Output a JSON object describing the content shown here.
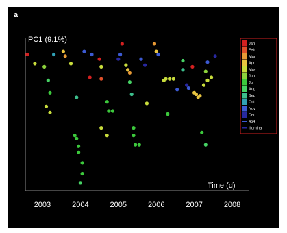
{
  "panel_label": "a",
  "chart_data": {
    "type": "scatter",
    "ylabel": "PC1 (9.1%)",
    "xlabel": "Time (d)",
    "x_ticks": [
      "2003",
      "2004",
      "2005",
      "2006",
      "2007",
      "2008"
    ],
    "xlim": [
      2002.55,
      2008.45
    ],
    "ylim": [
      0,
      1
    ],
    "grid": false,
    "legend_position": "top-right",
    "legend": [
      {
        "label": "Jan",
        "color": "#d42020"
      },
      {
        "label": "Feb",
        "color": "#e0502a"
      },
      {
        "label": "Mar",
        "color": "#e89a35"
      },
      {
        "label": "Apr",
        "color": "#e8c440"
      },
      {
        "label": "May",
        "color": "#c8dc3c"
      },
      {
        "label": "Jun",
        "color": "#8cd23c"
      },
      {
        "label": "Jul",
        "color": "#3cc83c"
      },
      {
        "label": "Aug",
        "color": "#46d264"
      },
      {
        "label": "Sep",
        "color": "#3cbe8c"
      },
      {
        "label": "Oct",
        "color": "#30a0b4"
      },
      {
        "label": "Nov",
        "color": "#3c5ad2"
      },
      {
        "label": "Dec",
        "color": "#2828a0"
      },
      {
        "label": "454",
        "color": "#3c5ad2",
        "marker": "line"
      },
      {
        "label": "Illumina",
        "color": "#2828a0",
        "marker": "line"
      }
    ],
    "series": [
      {
        "name": "454",
        "points": [
          {
            "x": 2002.6,
            "y": 0.89,
            "c": "#d42020"
          },
          {
            "x": 2002.8,
            "y": 0.83,
            "c": "#c8dc3c"
          },
          {
            "x": 2003.05,
            "y": 0.81,
            "c": "#8cd23c"
          },
          {
            "x": 2003.15,
            "y": 0.72,
            "c": "#46d264"
          },
          {
            "x": 2003.2,
            "y": 0.64,
            "c": "#3cc83c"
          },
          {
            "x": 2003.1,
            "y": 0.55,
            "c": "#c8dc3c"
          },
          {
            "x": 2003.2,
            "y": 0.51,
            "c": "#c8dc3c"
          },
          {
            "x": 2003.3,
            "y": 0.89,
            "c": "#30a0b4"
          },
          {
            "x": 2003.55,
            "y": 0.91,
            "c": "#e8c440"
          },
          {
            "x": 2003.6,
            "y": 0.88,
            "c": "#e89a35"
          },
          {
            "x": 2003.75,
            "y": 0.83,
            "c": "#c8dc3c"
          },
          {
            "x": 2003.9,
            "y": 0.61,
            "c": "#3cbe8c"
          },
          {
            "x": 2003.85,
            "y": 0.36,
            "c": "#3cc83c"
          },
          {
            "x": 2003.9,
            "y": 0.34,
            "c": "#3cc83c"
          },
          {
            "x": 2003.95,
            "y": 0.29,
            "c": "#3cc83c"
          },
          {
            "x": 2003.95,
            "y": 0.25,
            "c": "#3cc83c"
          },
          {
            "x": 2004.05,
            "y": 0.18,
            "c": "#3cc83c"
          },
          {
            "x": 2004.05,
            "y": 0.11,
            "c": "#3cc83c"
          },
          {
            "x": 2004.0,
            "y": 0.05,
            "c": "#46d264"
          },
          {
            "x": 2004.1,
            "y": 0.91,
            "c": "#3c5ad2"
          },
          {
            "x": 2004.3,
            "y": 0.89,
            "c": "#3c5ad2"
          },
          {
            "x": 2004.25,
            "y": 0.74,
            "c": "#d42020"
          },
          {
            "x": 2004.5,
            "y": 0.86,
            "c": "#d42020"
          },
          {
            "x": 2004.55,
            "y": 0.81,
            "c": "#c8dc3c"
          },
          {
            "x": 2004.55,
            "y": 0.73,
            "c": "#e0502a"
          },
          {
            "x": 2004.55,
            "y": 0.41,
            "c": "#c8dc3c"
          }
        ]
      },
      {
        "name": "Illumina",
        "points": [
          {
            "x": 2004.7,
            "y": 0.58,
            "c": "#3cc83c"
          },
          {
            "x": 2004.75,
            "y": 0.52,
            "c": "#3cc83c"
          },
          {
            "x": 2004.85,
            "y": 0.52,
            "c": "#3cc83c"
          },
          {
            "x": 2004.7,
            "y": 0.36,
            "c": "#c8dc3c"
          },
          {
            "x": 2005.0,
            "y": 0.86,
            "c": "#2828a0"
          },
          {
            "x": 2005.05,
            "y": 0.89,
            "c": "#3c5ad2"
          },
          {
            "x": 2005.1,
            "y": 0.96,
            "c": "#d42020"
          },
          {
            "x": 2005.2,
            "y": 0.82,
            "c": "#c8dc3c"
          },
          {
            "x": 2005.25,
            "y": 0.79,
            "c": "#e8c440"
          },
          {
            "x": 2005.3,
            "y": 0.77,
            "c": "#e89a35"
          },
          {
            "x": 2005.3,
            "y": 0.71,
            "c": "#46d264"
          },
          {
            "x": 2005.35,
            "y": 0.63,
            "c": "#3cbe8c"
          },
          {
            "x": 2005.4,
            "y": 0.41,
            "c": "#3cc83c"
          },
          {
            "x": 2005.4,
            "y": 0.36,
            "c": "#3cc83c"
          },
          {
            "x": 2005.45,
            "y": 0.3,
            "c": "#3cc83c"
          },
          {
            "x": 2005.55,
            "y": 0.3,
            "c": "#3cc83c"
          },
          {
            "x": 2005.6,
            "y": 0.86,
            "c": "#3c5ad2"
          },
          {
            "x": 2005.7,
            "y": 0.82,
            "c": "#2828a0"
          },
          {
            "x": 2005.75,
            "y": 0.57,
            "c": "#c8dc3c"
          },
          {
            "x": 2005.95,
            "y": 0.96,
            "c": "#e89a35"
          },
          {
            "x": 2006.0,
            "y": 0.91,
            "c": "#e8c440"
          },
          {
            "x": 2006.05,
            "y": 0.89,
            "c": "#3c5ad2"
          },
          {
            "x": 2006.2,
            "y": 0.72,
            "c": "#c8dc3c"
          },
          {
            "x": 2006.25,
            "y": 0.73,
            "c": "#c8dc3c"
          },
          {
            "x": 2006.35,
            "y": 0.73,
            "c": "#c8dc3c"
          },
          {
            "x": 2006.45,
            "y": 0.73,
            "c": "#c8dc3c"
          },
          {
            "x": 2006.3,
            "y": 0.5,
            "c": "#3cc83c"
          },
          {
            "x": 2006.55,
            "y": 0.66,
            "c": "#3c5ad2"
          },
          {
            "x": 2006.7,
            "y": 0.85,
            "c": "#46d264"
          },
          {
            "x": 2006.7,
            "y": 0.79,
            "c": "#3cbe8c"
          },
          {
            "x": 2006.8,
            "y": 0.69,
            "c": "#2828a0"
          },
          {
            "x": 2006.85,
            "y": 0.67,
            "c": "#3c5ad2"
          },
          {
            "x": 2006.95,
            "y": 0.81,
            "c": "#d42020"
          },
          {
            "x": 2007.0,
            "y": 0.64,
            "c": "#e8c440"
          },
          {
            "x": 2007.05,
            "y": 0.63,
            "c": "#e8c440"
          },
          {
            "x": 2007.1,
            "y": 0.61,
            "c": "#e8c440"
          },
          {
            "x": 2007.15,
            "y": 0.62,
            "c": "#e8c440"
          },
          {
            "x": 2007.25,
            "y": 0.69,
            "c": "#c8dc3c"
          },
          {
            "x": 2007.3,
            "y": 0.78,
            "c": "#8cd23c"
          },
          {
            "x": 2007.35,
            "y": 0.72,
            "c": "#c8dc3c"
          },
          {
            "x": 2007.45,
            "y": 0.74,
            "c": "#c8dc3c"
          },
          {
            "x": 2007.35,
            "y": 0.84,
            "c": "#3c5ad2"
          },
          {
            "x": 2007.2,
            "y": 0.38,
            "c": "#3cc83c"
          },
          {
            "x": 2007.3,
            "y": 0.3,
            "c": "#46d264"
          },
          {
            "x": 2007.55,
            "y": 0.88,
            "c": "#2828a0"
          }
        ]
      }
    ]
  }
}
